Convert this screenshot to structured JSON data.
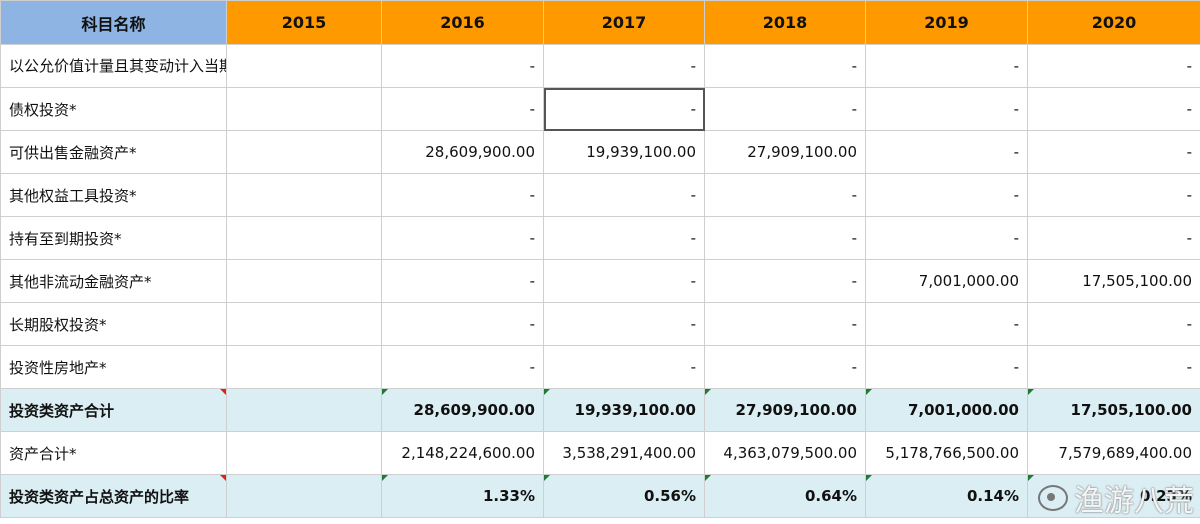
{
  "header": {
    "label": "科目名称",
    "years": [
      "2015",
      "2016",
      "2017",
      "2018",
      "2019",
      "2020"
    ]
  },
  "rows": [
    {
      "label": "以公允价值计量且其变动计入当期损益的金融资产*",
      "values": [
        "",
        "-",
        "-",
        "-",
        "-",
        "-"
      ]
    },
    {
      "label": "债权投资*",
      "values": [
        "",
        "-",
        "-",
        "-",
        "-",
        "-"
      ]
    },
    {
      "label": "可供出售金融资产*",
      "values": [
        "",
        "28,609,900.00",
        "19,939,100.00",
        "27,909,100.00",
        "-",
        "-"
      ]
    },
    {
      "label": "其他权益工具投资*",
      "values": [
        "",
        "-",
        "-",
        "-",
        "-",
        "-"
      ]
    },
    {
      "label": "持有至到期投资*",
      "values": [
        "",
        "-",
        "-",
        "-",
        "-",
        "-"
      ]
    },
    {
      "label": "其他非流动金融资产*",
      "values": [
        "",
        "-",
        "-",
        "-",
        "7,001,000.00",
        "17,505,100.00"
      ]
    },
    {
      "label": "长期股权投资*",
      "values": [
        "",
        "-",
        "-",
        "-",
        "-",
        "-"
      ]
    },
    {
      "label": "投资性房地产*",
      "values": [
        "",
        "-",
        "-",
        "-",
        "-",
        "-"
      ]
    },
    {
      "label": "投资类资产合计",
      "values": [
        "",
        "28,609,900.00",
        "19,939,100.00",
        "27,909,100.00",
        "7,001,000.00",
        "17,505,100.00"
      ]
    },
    {
      "label": "资产合计*",
      "values": [
        "",
        "2,148,224,600.00",
        "3,538,291,400.00",
        "4,363,079,500.00",
        "5,178,766,500.00",
        "7,579,689,400.00"
      ]
    },
    {
      "label": "投资类资产占总资产的比率",
      "values": [
        "",
        "1.33%",
        "0.56%",
        "0.64%",
        "0.14%",
        "0.23%"
      ]
    }
  ],
  "watermark": {
    "text": "渔游八荒",
    "icon": "weibo-logo-icon"
  }
}
